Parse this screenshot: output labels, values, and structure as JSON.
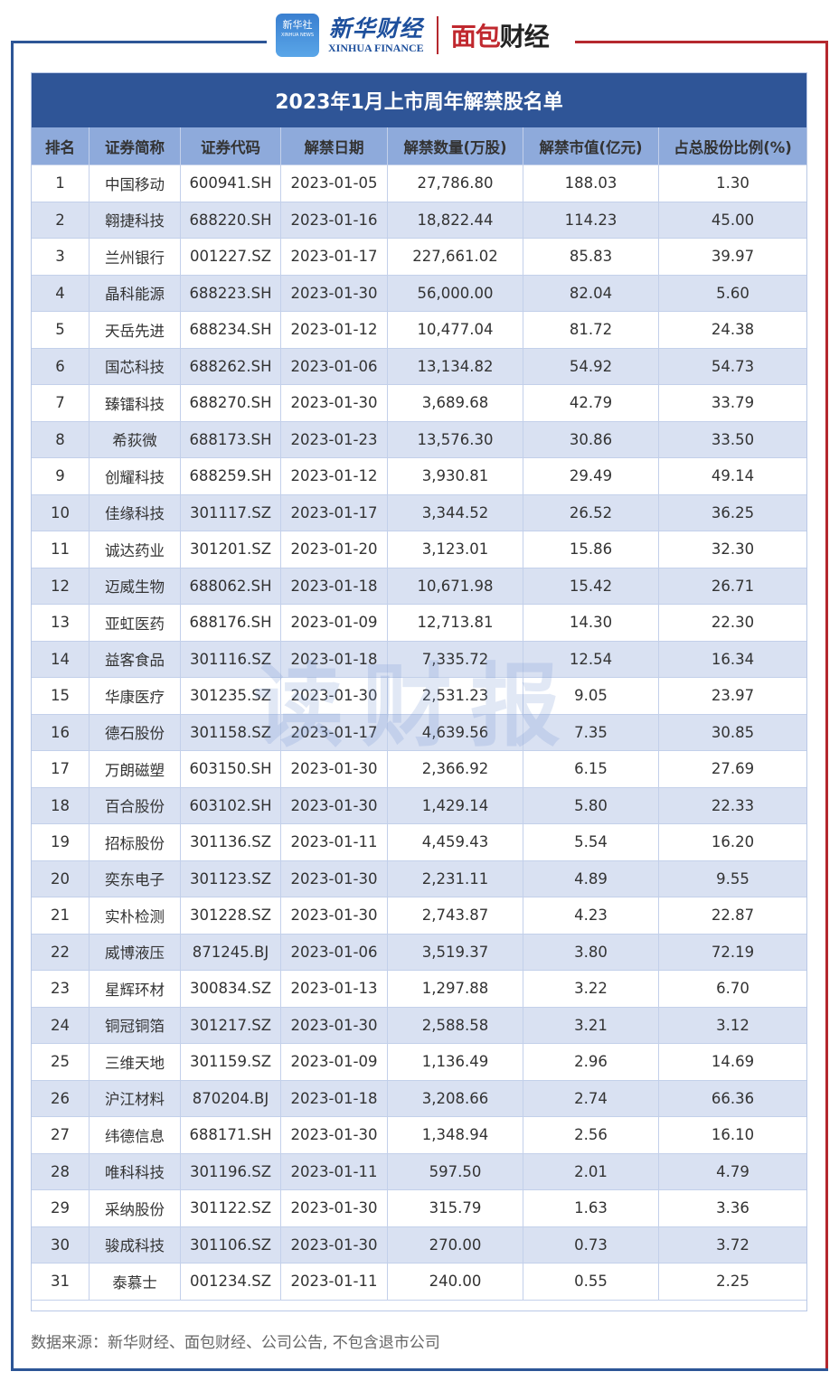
{
  "branding": {
    "xinhua_badge": "新华社",
    "xinhua_badge_sub": "XINHUA NEWS",
    "xinhua_cn": "新华财经",
    "xinhua_en": "XINHUA FINANCE",
    "mianbao_part1": "面包",
    "mianbao_part2": "财经",
    "watermark": "读财报"
  },
  "colors": {
    "title_bg": "#2f5597",
    "header_bg": "#8eaadb",
    "alt_row_bg": "#d9e1f2",
    "frame_blue": "#2d5596",
    "frame_red": "#b5282e"
  },
  "table": {
    "title": "2023年1月上市周年解禁股名单",
    "headers": [
      "排名",
      "证券简称",
      "证券代码",
      "解禁日期",
      "解禁数量(万股)",
      "解禁市值(亿元)",
      "占总股份比例(%)"
    ],
    "rows": [
      [
        "1",
        "中国移动",
        "600941.SH",
        "2023-01-05",
        "27,786.80",
        "188.03",
        "1.30"
      ],
      [
        "2",
        "翱捷科技",
        "688220.SH",
        "2023-01-16",
        "18,822.44",
        "114.23",
        "45.00"
      ],
      [
        "3",
        "兰州银行",
        "001227.SZ",
        "2023-01-17",
        "227,661.02",
        "85.83",
        "39.97"
      ],
      [
        "4",
        "晶科能源",
        "688223.SH",
        "2023-01-30",
        "56,000.00",
        "82.04",
        "5.60"
      ],
      [
        "5",
        "天岳先进",
        "688234.SH",
        "2023-01-12",
        "10,477.04",
        "81.72",
        "24.38"
      ],
      [
        "6",
        "国芯科技",
        "688262.SH",
        "2023-01-06",
        "13,134.82",
        "54.92",
        "54.73"
      ],
      [
        "7",
        "臻镭科技",
        "688270.SH",
        "2023-01-30",
        "3,689.68",
        "42.79",
        "33.79"
      ],
      [
        "8",
        "希荻微",
        "688173.SH",
        "2023-01-23",
        "13,576.30",
        "30.86",
        "33.50"
      ],
      [
        "9",
        "创耀科技",
        "688259.SH",
        "2023-01-12",
        "3,930.81",
        "29.49",
        "49.14"
      ],
      [
        "10",
        "佳缘科技",
        "301117.SZ",
        "2023-01-17",
        "3,344.52",
        "26.52",
        "36.25"
      ],
      [
        "11",
        "诚达药业",
        "301201.SZ",
        "2023-01-20",
        "3,123.01",
        "15.86",
        "32.30"
      ],
      [
        "12",
        "迈威生物",
        "688062.SH",
        "2023-01-18",
        "10,671.98",
        "15.42",
        "26.71"
      ],
      [
        "13",
        "亚虹医药",
        "688176.SH",
        "2023-01-09",
        "12,713.81",
        "14.30",
        "22.30"
      ],
      [
        "14",
        "益客食品",
        "301116.SZ",
        "2023-01-18",
        "7,335.72",
        "12.54",
        "16.34"
      ],
      [
        "15",
        "华康医疗",
        "301235.SZ",
        "2023-01-30",
        "2,531.23",
        "9.05",
        "23.97"
      ],
      [
        "16",
        "德石股份",
        "301158.SZ",
        "2023-01-17",
        "4,639.56",
        "7.35",
        "30.85"
      ],
      [
        "17",
        "万朗磁塑",
        "603150.SH",
        "2023-01-30",
        "2,366.92",
        "6.15",
        "27.69"
      ],
      [
        "18",
        "百合股份",
        "603102.SH",
        "2023-01-30",
        "1,429.14",
        "5.80",
        "22.33"
      ],
      [
        "19",
        "招标股份",
        "301136.SZ",
        "2023-01-11",
        "4,459.43",
        "5.54",
        "16.20"
      ],
      [
        "20",
        "奕东电子",
        "301123.SZ",
        "2023-01-30",
        "2,231.11",
        "4.89",
        "9.55"
      ],
      [
        "21",
        "实朴检测",
        "301228.SZ",
        "2023-01-30",
        "2,743.87",
        "4.23",
        "22.87"
      ],
      [
        "22",
        "威博液压",
        "871245.BJ",
        "2023-01-06",
        "3,519.37",
        "3.80",
        "72.19"
      ],
      [
        "23",
        "星辉环材",
        "300834.SZ",
        "2023-01-13",
        "1,297.88",
        "3.22",
        "6.70"
      ],
      [
        "24",
        "铜冠铜箔",
        "301217.SZ",
        "2023-01-30",
        "2,588.58",
        "3.21",
        "3.12"
      ],
      [
        "25",
        "三维天地",
        "301159.SZ",
        "2023-01-09",
        "1,136.49",
        "2.96",
        "14.69"
      ],
      [
        "26",
        "沪江材料",
        "870204.BJ",
        "2023-01-18",
        "3,208.66",
        "2.74",
        "66.36"
      ],
      [
        "27",
        "纬德信息",
        "688171.SH",
        "2023-01-30",
        "1,348.94",
        "2.56",
        "16.10"
      ],
      [
        "28",
        "唯科科技",
        "301196.SZ",
        "2023-01-11",
        "597.50",
        "2.01",
        "4.79"
      ],
      [
        "29",
        "采纳股份",
        "301122.SZ",
        "2023-01-30",
        "315.79",
        "1.63",
        "3.36"
      ],
      [
        "30",
        "骏成科技",
        "301106.SZ",
        "2023-01-30",
        "270.00",
        "0.73",
        "3.72"
      ],
      [
        "31",
        "泰慕士",
        "001234.SZ",
        "2023-01-11",
        "240.00",
        "0.55",
        "2.25"
      ]
    ]
  },
  "footer": {
    "source": "数据来源：新华财经、面包财经、公司公告, 不包含退市公司"
  }
}
